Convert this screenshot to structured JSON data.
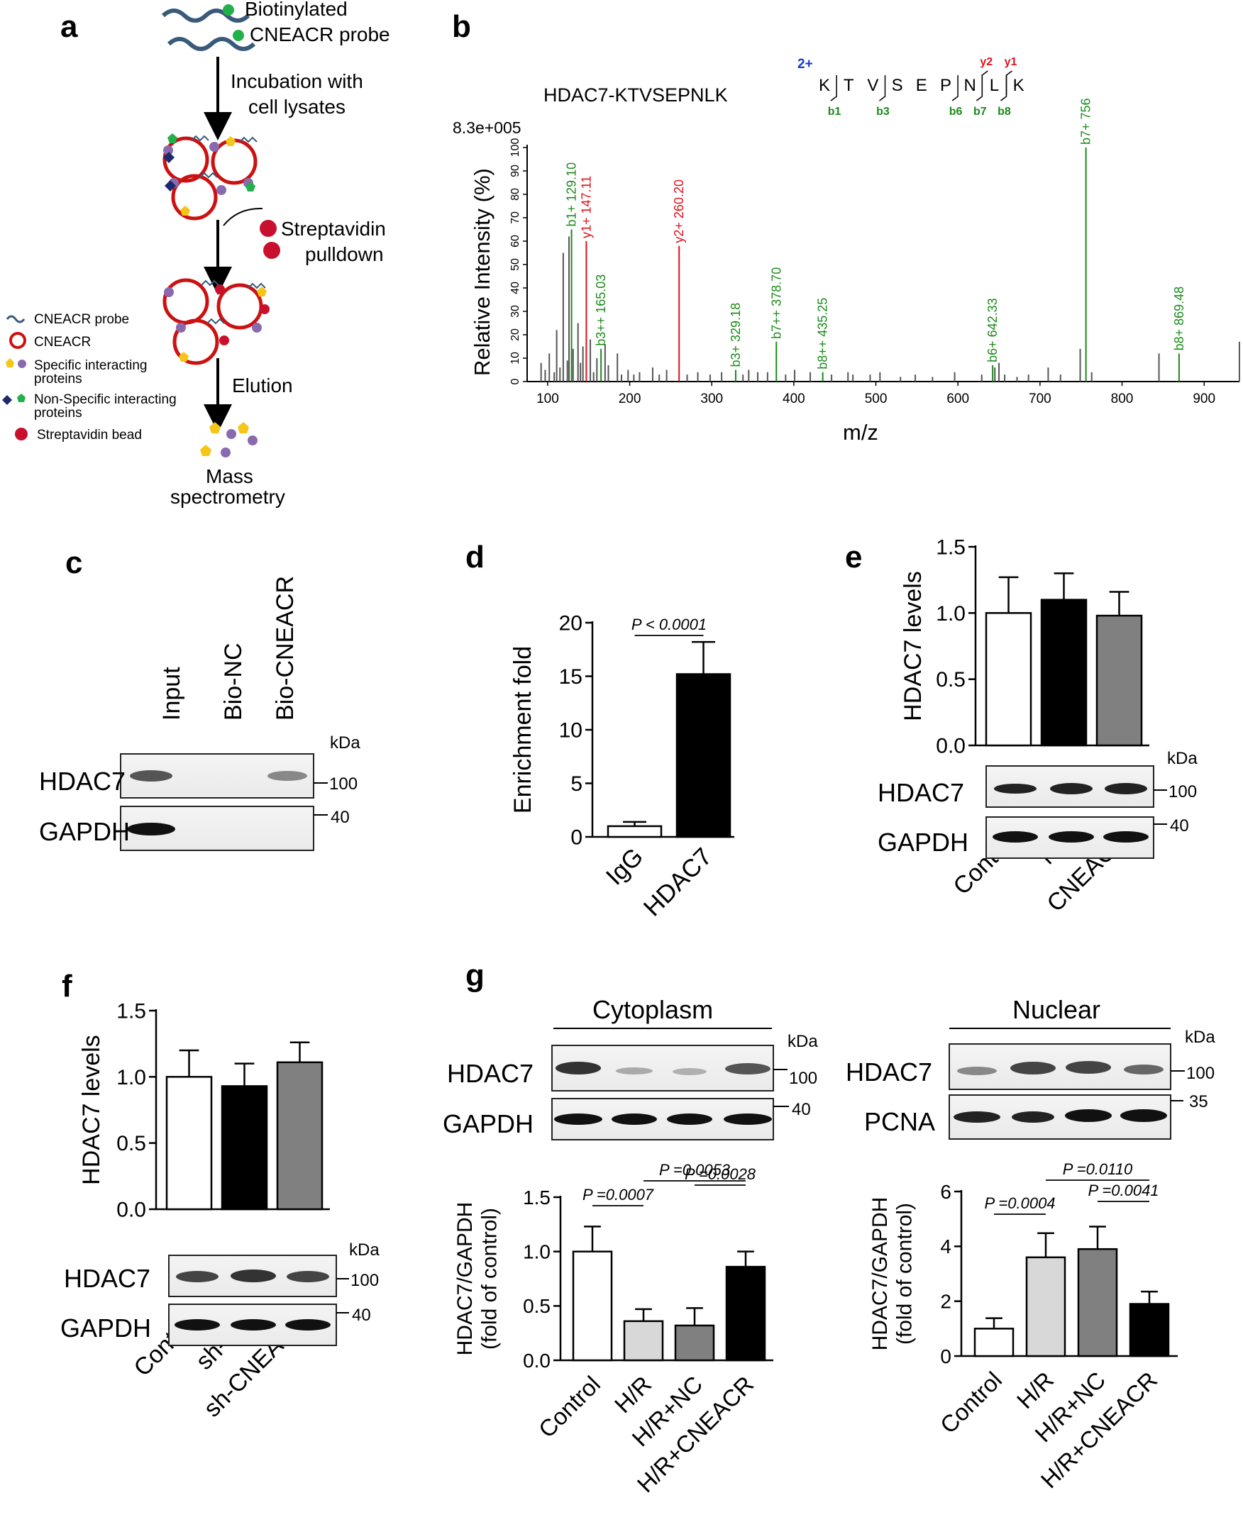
{
  "panel_labels": {
    "a": "a",
    "b": "b",
    "c": "c",
    "d": "d",
    "e": "e",
    "f": "f",
    "g": "g"
  },
  "panel_a": {
    "probe_line1": "Biotinylated",
    "probe_line2": "CNEACR probe",
    "step1_line1": "Incubation with",
    "step1_line2": "cell lysates",
    "step2_line1": "Streptavidin",
    "step2_line2": "pulldown",
    "step3": "Elution",
    "final_line1": "Mass",
    "final_line2": "spectrometry",
    "legend": [
      {
        "text": "CNEACR probe"
      },
      {
        "text": "CNEACR"
      },
      {
        "text": "Specific interacting",
        "text2": "proteins"
      },
      {
        "text": "Non-Specific interacting",
        "text2": "proteins"
      },
      {
        "text": "Streptavidin bead"
      }
    ],
    "colors": {
      "probe": "#3a5a7a",
      "circle": "#cc1111",
      "purple": "#8a6aae",
      "yellow": "#f5c518",
      "navy": "#1a2a6c",
      "green": "#22b04a",
      "red": "#c8102e"
    }
  },
  "chart_data": [
    {
      "panel": "b",
      "type": "bar",
      "title": "HDAC7-KTVSEPNLK",
      "max_label": "8.3e+005",
      "xlabel": "m/z",
      "ylabel": "Relative Intensity (%)",
      "xlim": [
        75,
        950
      ],
      "ylim": [
        0,
        100
      ],
      "x_ticks": [
        100,
        200,
        300,
        400,
        500,
        600,
        700,
        800,
        900
      ],
      "y_ticks": [
        0,
        10,
        20,
        30,
        40,
        50,
        60,
        70,
        80,
        90,
        100
      ],
      "sequence": [
        "K",
        "T",
        "V",
        "S",
        "E",
        "P",
        "N",
        "L",
        "K"
      ],
      "charge": "2+",
      "b_ion_marks": [
        "b1",
        "b3",
        "b6",
        "b7",
        "b8"
      ],
      "y_ion_marks": [
        "y2",
        "y1"
      ],
      "annotated_peaks": [
        {
          "mz": 129.1,
          "intensity": 65,
          "label": "b1+ 129.10",
          "ion": "b"
        },
        {
          "mz": 147.11,
          "intensity": 60,
          "label": "y1+ 147.11",
          "ion": "y"
        },
        {
          "mz": 165.03,
          "intensity": 14,
          "label": "b3++ 165.03",
          "ion": "b"
        },
        {
          "mz": 260.2,
          "intensity": 58,
          "label": "y2+ 260.20",
          "ion": "y"
        },
        {
          "mz": 329.18,
          "intensity": 5,
          "label": "b3+  329.18",
          "ion": "b"
        },
        {
          "mz": 378.7,
          "intensity": 17,
          "label": "b7++ 378.70",
          "ion": "b"
        },
        {
          "mz": 435.25,
          "intensity": 4,
          "label": "b8++ 435.25",
          "ion": "b"
        },
        {
          "mz": 642.33,
          "intensity": 7,
          "label": "b6+  642.33",
          "ion": "b"
        },
        {
          "mz": 756,
          "intensity": 100,
          "label": "b7+ 756",
          "ion": "b"
        },
        {
          "mz": 869.48,
          "intensity": 12,
          "label": "b8+ 869.48",
          "ion": "b"
        }
      ],
      "other_peaks": [
        [
          92,
          8
        ],
        [
          97,
          5
        ],
        [
          102,
          12
        ],
        [
          108,
          4
        ],
        [
          111,
          22
        ],
        [
          115,
          6
        ],
        [
          119,
          55
        ],
        [
          124,
          9
        ],
        [
          126,
          62
        ],
        [
          131,
          14
        ],
        [
          137,
          25
        ],
        [
          140,
          8
        ],
        [
          143,
          15
        ],
        [
          152,
          18
        ],
        [
          156,
          4
        ],
        [
          160,
          10
        ],
        [
          170,
          16
        ],
        [
          174,
          7
        ],
        [
          185,
          12
        ],
        [
          190,
          3
        ],
        [
          198,
          5
        ],
        [
          205,
          3
        ],
        [
          212,
          4
        ],
        [
          228,
          6
        ],
        [
          236,
          3
        ],
        [
          245,
          5
        ],
        [
          270,
          3
        ],
        [
          283,
          4
        ],
        [
          298,
          3
        ],
        [
          312,
          4
        ],
        [
          338,
          3
        ],
        [
          345,
          5
        ],
        [
          356,
          4
        ],
        [
          368,
          4
        ],
        [
          390,
          3
        ],
        [
          401,
          5
        ],
        [
          420,
          4
        ],
        [
          446,
          3
        ],
        [
          466,
          4
        ],
        [
          472,
          3
        ],
        [
          493,
          3
        ],
        [
          505,
          4
        ],
        [
          530,
          2
        ],
        [
          548,
          3
        ],
        [
          569,
          2
        ],
        [
          596,
          4
        ],
        [
          629,
          3
        ],
        [
          645,
          6
        ],
        [
          650,
          8
        ],
        [
          657,
          3
        ],
        [
          672,
          2
        ],
        [
          686,
          3
        ],
        [
          710,
          6
        ],
        [
          725,
          3
        ],
        [
          749,
          14
        ],
        [
          763,
          4
        ],
        [
          845,
          12
        ],
        [
          943,
          17
        ]
      ],
      "colors": {
        "b": "#1a8a1a",
        "y": "#e0101a",
        "other": "#555555"
      }
    },
    {
      "panel": "d",
      "type": "bar",
      "categories": [
        "IgG",
        "HDAC7"
      ],
      "values": [
        1.0,
        15.2
      ],
      "errors": [
        0.4,
        3.0
      ],
      "ylabel": "Enrichment fold",
      "ylim": [
        0,
        20
      ],
      "y_ticks": [
        0,
        5,
        10,
        15,
        20
      ],
      "significance": [
        {
          "from": 0,
          "to": 1,
          "text": "P < 0.0001"
        }
      ],
      "colors": [
        "#ffffff",
        "#000000"
      ]
    },
    {
      "panel": "e",
      "type": "bar",
      "categories": [
        "Control",
        "NC",
        "CNEACR"
      ],
      "values": [
        1.0,
        1.1,
        0.98
      ],
      "errors": [
        0.27,
        0.2,
        0.18
      ],
      "ylabel": "HDAC7 levels",
      "ylim": [
        0,
        1.5
      ],
      "y_ticks": [
        "0.0",
        "0.5",
        "1.0",
        "1.5"
      ],
      "colors": [
        "#ffffff",
        "#000000",
        "#808080"
      ]
    },
    {
      "panel": "f",
      "type": "bar",
      "categories": [
        "Control",
        "sh-NC",
        "sh-CNEACR"
      ],
      "values": [
        1.0,
        0.93,
        1.11
      ],
      "errors": [
        0.2,
        0.17,
        0.15
      ],
      "ylabel": "HDAC7 levels",
      "ylim": [
        0,
        1.5
      ],
      "y_ticks": [
        "0.0",
        "0.5",
        "1.0",
        "1.5"
      ],
      "colors": [
        "#ffffff",
        "#000000",
        "#808080"
      ]
    },
    {
      "panel": "g-cytoplasm",
      "type": "bar",
      "categories": [
        "Control",
        "H/R",
        "H/R+NC",
        "H/R+CNEACR"
      ],
      "values": [
        1.0,
        0.36,
        0.32,
        0.86
      ],
      "errors": [
        0.23,
        0.11,
        0.16,
        0.14
      ],
      "ylabel": "HDAC7/GAPDH",
      "ylabel2": "(fold of control)",
      "ylim": [
        0,
        1.5
      ],
      "y_ticks": [
        "0.0",
        "0.5",
        "1.0",
        "1.5"
      ],
      "significance": [
        {
          "from": 0,
          "to": 1,
          "text": "P =0.0007"
        },
        {
          "from": 2,
          "to": 3,
          "text": "P =0.0028"
        },
        {
          "from": 1,
          "to": 3,
          "text": "P =0.0053"
        }
      ],
      "colors": [
        "#ffffff",
        "#d8d8d8",
        "#808080",
        "#000000"
      ]
    },
    {
      "panel": "g-nuclear",
      "type": "bar",
      "categories": [
        "Control",
        "H/R",
        "H/R+NC",
        "H/R+CNEACR"
      ],
      "values": [
        1.0,
        3.6,
        3.9,
        1.9
      ],
      "errors": [
        0.38,
        0.88,
        0.82,
        0.45
      ],
      "ylabel": "HDAC7/GAPDH",
      "ylabel2": "(fold of control)",
      "ylim": [
        0,
        6
      ],
      "y_ticks": [
        "0",
        "2",
        "4",
        "6"
      ],
      "significance": [
        {
          "from": 0,
          "to": 1,
          "text": "P =0.0004"
        },
        {
          "from": 2,
          "to": 3,
          "text": "P =0.0041"
        },
        {
          "from": 1,
          "to": 3,
          "text": "P =0.0110"
        }
      ],
      "colors": [
        "#ffffff",
        "#d8d8d8",
        "#808080",
        "#000000"
      ]
    }
  ],
  "blots": {
    "c": {
      "lanes": [
        "Input",
        "Bio-NC",
        "Bio-CNEACR"
      ],
      "rows": [
        "HDAC7",
        "GAPDH"
      ],
      "unit": "kDa",
      "markers": [
        "100",
        "40"
      ]
    },
    "e": {
      "rows": [
        "HDAC7",
        "GAPDH"
      ],
      "unit": "kDa",
      "markers": [
        "100",
        "40"
      ]
    },
    "f": {
      "rows": [
        "HDAC7",
        "GAPDH"
      ],
      "unit": "kDa",
      "markers": [
        "100",
        "40"
      ]
    },
    "g_cyto": {
      "header": "Cytoplasm",
      "rows": [
        "HDAC7",
        "GAPDH"
      ],
      "unit": "kDa",
      "markers": [
        "100",
        "40"
      ]
    },
    "g_nuc": {
      "header": "Nuclear",
      "rows": [
        "HDAC7",
        "PCNA"
      ],
      "unit": "kDa",
      "markers": [
        "100",
        "35"
      ]
    }
  }
}
